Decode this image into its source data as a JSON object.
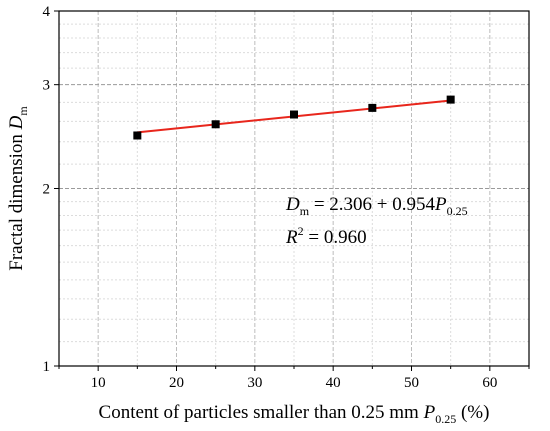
{
  "chart_data": {
    "type": "scatter",
    "x_axis": {
      "label_main": "Content of particles smaller than 0.25 mm ",
      "label_var": "P",
      "label_sub": "0.25",
      "label_unit": " (%)",
      "min": 5,
      "max": 65,
      "ticks": [
        10,
        20,
        30,
        40,
        50,
        60
      ],
      "tick_labels": [
        "10",
        "20",
        "30",
        "40",
        "50",
        "60"
      ]
    },
    "y_axis": {
      "label_main": "Fractal dimension ",
      "label_var": "D",
      "label_sub": "m",
      "scale": "log",
      "min": 1,
      "max": 4,
      "ticks": [
        1,
        2,
        3,
        4
      ],
      "tick_labels": [
        "1",
        "2",
        "3",
        "4"
      ]
    },
    "grid": true,
    "series": [
      {
        "marker": "square",
        "color": "#000000",
        "x": [
          15,
          25,
          35,
          45,
          55
        ],
        "y": [
          2.46,
          2.57,
          2.67,
          2.74,
          2.83
        ]
      }
    ],
    "fit_line": {
      "color": "#e8261c",
      "x_range": [
        15,
        55
      ],
      "y_start": 2.49,
      "y_end": 2.82
    },
    "annotation": {
      "var1": "D",
      "sub1": "m",
      "rhs": " = 2.306 + 0.954",
      "var2": "P",
      "sub2": "0.25",
      "r_var": "R",
      "r_sup": "2",
      "r_rhs": " = 0.960"
    }
  }
}
